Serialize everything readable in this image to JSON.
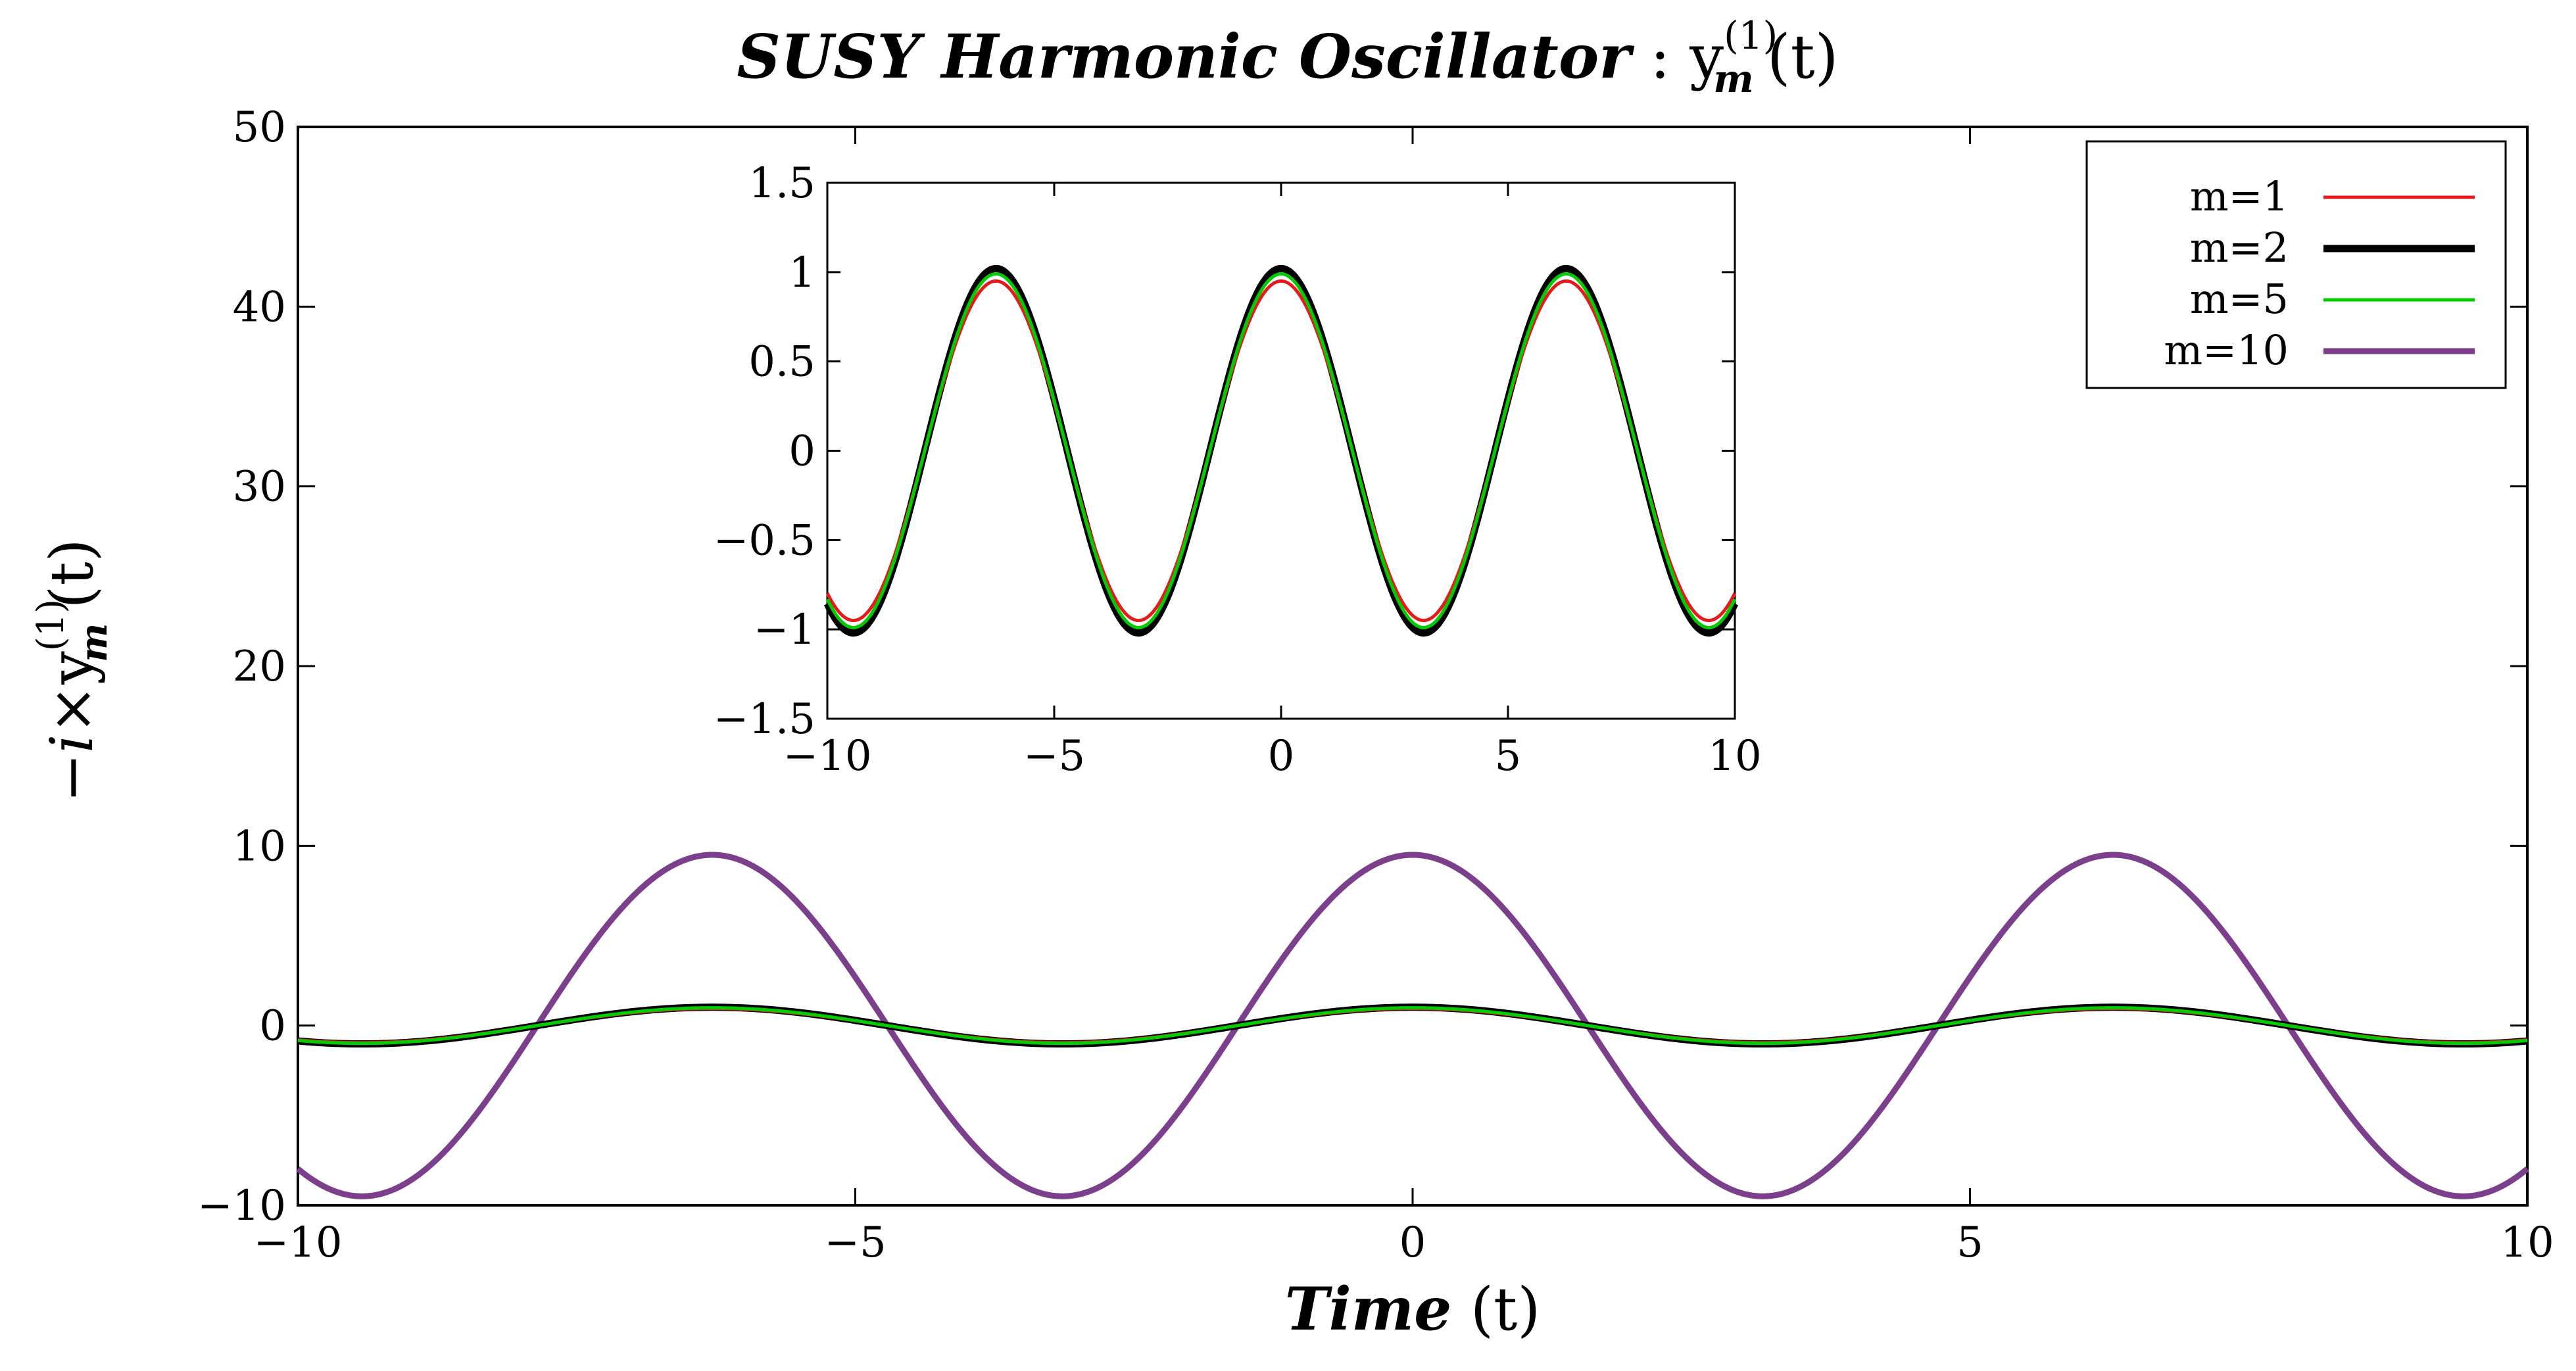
{
  "title": {
    "italic_bold": "SUSY Harmonic Oscillator",
    "separator": " : ",
    "base": "y",
    "superscript": "(1)",
    "subscript": "m",
    "tail": "(t)"
  },
  "xlabel": {
    "italic_bold": "Time",
    "tail": " (t)"
  },
  "ylabel": {
    "prefix": "−",
    "imag": "i",
    "times": "×",
    "base": "y",
    "superscript": "(1)",
    "subscript": "m",
    "tail": "(t)"
  },
  "colors": {
    "m1": "#e41a1c",
    "m2": "#000000",
    "m5": "#00cc00",
    "m10": "#7b3f8c"
  },
  "chart_data": [
    {
      "id": "main",
      "type": "line",
      "xlim": [
        -10,
        10
      ],
      "ylim": [
        -10,
        50
      ],
      "xticks": [
        -10,
        -5,
        0,
        5,
        10
      ],
      "xtick_labels": [
        "−10",
        "−5",
        "0",
        "5",
        "10"
      ],
      "yticks": [
        -10,
        0,
        10,
        20,
        30,
        40,
        50
      ],
      "ytick_labels": [
        "−10",
        "0",
        "10",
        "20",
        "30",
        "40",
        "50"
      ],
      "grid": false,
      "legend": "top-right",
      "series": [
        {
          "name": "m=1",
          "color": "#e41a1c",
          "function": "amp*cos(t)",
          "amplitude": 0.95,
          "x_range": [
            -10,
            10
          ]
        },
        {
          "name": "m=2",
          "color": "#000000",
          "function": "amp*cos(t)",
          "amplitude": 1.02,
          "x_range": [
            -10,
            10
          ]
        },
        {
          "name": "m=5",
          "color": "#00cc00",
          "function": "amp*cos(t)",
          "amplitude": 0.99,
          "x_range": [
            -10,
            10
          ]
        },
        {
          "name": "m=10",
          "color": "#7b3f8c",
          "function": "amp*cos(t)",
          "amplitude": 9.5,
          "x_range": [
            -10,
            10
          ]
        }
      ]
    },
    {
      "id": "inset",
      "type": "line",
      "xlim": [
        -10,
        10
      ],
      "ylim": [
        -1.5,
        1.5
      ],
      "xticks": [
        -10,
        -5,
        0,
        5,
        10
      ],
      "xtick_labels": [
        "−10",
        "−5",
        "0",
        "5",
        "10"
      ],
      "yticks": [
        -1.5,
        -1,
        -0.5,
        0,
        0.5,
        1,
        1.5
      ],
      "ytick_labels": [
        "−1.5",
        "−1",
        "−0.5",
        "0",
        "0.5",
        "1",
        "1.5"
      ],
      "grid": false,
      "series": [
        {
          "name": "m=1",
          "color": "#e41a1c",
          "function": "amp*cos(t)",
          "amplitude": 0.95,
          "x_range": [
            -10,
            10
          ]
        },
        {
          "name": "m=2",
          "color": "#000000",
          "function": "amp*cos(t)",
          "amplitude": 1.02,
          "x_range": [
            -10,
            10
          ]
        },
        {
          "name": "m=5",
          "color": "#00cc00",
          "function": "amp*cos(t)",
          "amplitude": 0.99,
          "x_range": [
            -10,
            10
          ]
        }
      ]
    }
  ]
}
